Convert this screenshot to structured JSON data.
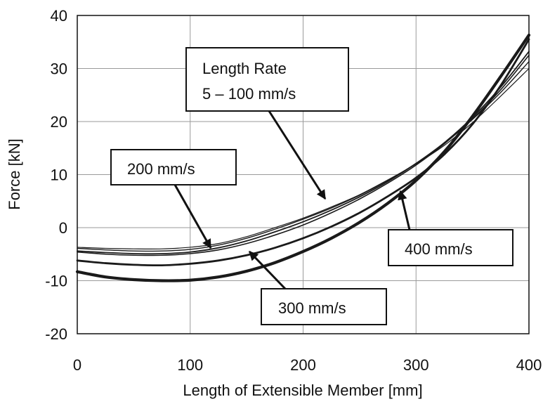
{
  "chart_data": {
    "type": "line",
    "xlabel": "Length of Extensible Member  [mm]",
    "ylabel": "Force  [kN]",
    "xlim": [
      0,
      400
    ],
    "ylim": [
      -20,
      40
    ],
    "x_ticks": [
      0,
      100,
      200,
      300,
      400
    ],
    "y_ticks": [
      -20,
      -10,
      0,
      10,
      20,
      30,
      40
    ],
    "x_tick_labels": [
      "0",
      "100",
      "200",
      "300",
      "400"
    ],
    "y_tick_labels": [
      "-20",
      "-10",
      "0",
      "10",
      "20",
      "30",
      "40"
    ],
    "grid": true,
    "legend": "none",
    "x": [
      0,
      25,
      50,
      75,
      100,
      125,
      150,
      175,
      200,
      225,
      250,
      275,
      300,
      325,
      350,
      375,
      400
    ],
    "series": [
      {
        "values": [
          -3.7,
          -3.9,
          -4.0,
          -4.0,
          -3.7,
          -3.0,
          -1.7,
          0.0,
          1.8,
          3.9,
          6.2,
          9.0,
          12.0,
          15.5,
          19.8,
          24.8,
          30.0
        ],
        "stroke": 1.2
      },
      {
        "values": [
          -3.9,
          -4.2,
          -4.4,
          -4.4,
          -4.1,
          -3.3,
          -2.0,
          -0.3,
          1.6,
          3.7,
          6.1,
          8.9,
          12.1,
          15.9,
          20.4,
          25.5,
          31.3
        ],
        "stroke": 1.4
      },
      {
        "values": [
          -4.6,
          -5.0,
          -5.2,
          -5.2,
          -4.9,
          -4.2,
          -3.0,
          -1.4,
          0.5,
          2.8,
          5.4,
          8.4,
          11.8,
          15.8,
          20.5,
          26.0,
          32.5
        ],
        "stroke": 1.6
      },
      {
        "values": [
          -4.4,
          -4.7,
          -4.9,
          -4.9,
          -4.6,
          -3.8,
          -2.5,
          -0.8,
          1.1,
          3.3,
          5.8,
          8.7,
          12.1,
          16.0,
          20.8,
          26.5,
          33.2
        ],
        "stroke": 1.8
      },
      {
        "values": [
          -6.2,
          -6.7,
          -7.0,
          -7.1,
          -6.8,
          -6.2,
          -5.2,
          -3.8,
          -2.0,
          0.2,
          2.8,
          5.9,
          9.4,
          13.8,
          19.5,
          26.8,
          35.5
        ],
        "stroke": 2.8
      },
      {
        "values": [
          -8.3,
          -9.3,
          -9.8,
          -10.0,
          -9.9,
          -9.3,
          -8.2,
          -6.6,
          -4.5,
          -2.0,
          1.0,
          4.6,
          8.9,
          14.3,
          21.0,
          28.5,
          36.3
        ],
        "stroke": 4.2
      }
    ],
    "annotations": [
      {
        "lines": [
          "Length Rate",
          "5 – 100 mm/s"
        ]
      },
      {
        "lines": [
          "200 mm/s"
        ]
      },
      {
        "lines": [
          "300 mm/s"
        ]
      },
      {
        "lines": [
          "400 mm/s"
        ]
      }
    ]
  }
}
